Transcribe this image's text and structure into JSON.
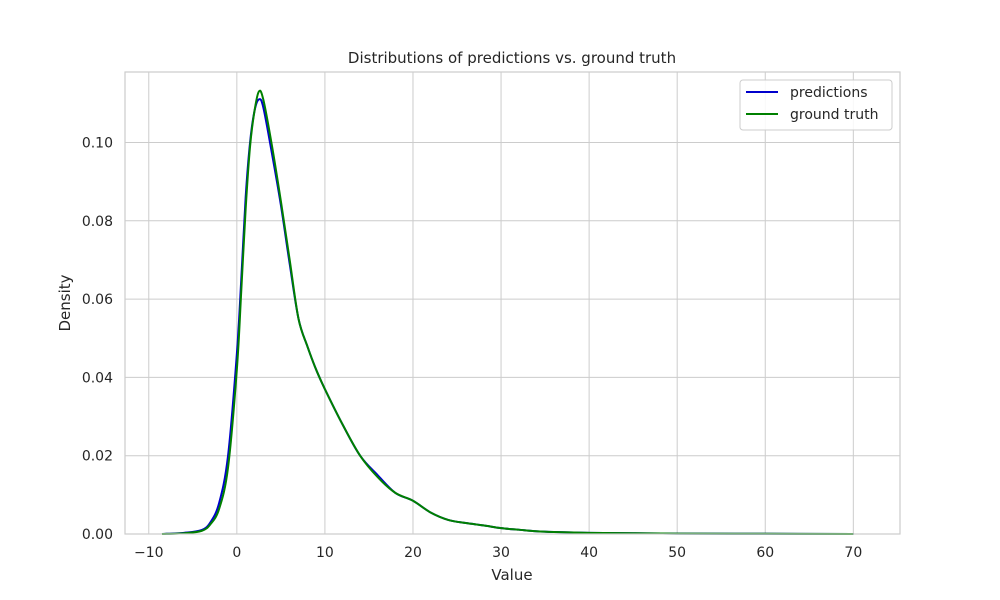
{
  "chart_data": {
    "type": "line",
    "title": "Distributions of predictions vs. ground truth",
    "xlabel": "Value",
    "ylabel": "Density",
    "xlim": [
      -12.7,
      75.3
    ],
    "ylim": [
      0,
      0.118
    ],
    "xticks": [
      -10,
      0,
      10,
      20,
      30,
      40,
      50,
      60,
      70
    ],
    "yticks": [
      0,
      0.02,
      0.04,
      0.06,
      0.08,
      0.1
    ],
    "ytick_labels": [
      "0.00",
      "0.02",
      "0.04",
      "0.06",
      "0.08",
      "0.10"
    ],
    "grid": true,
    "legend_position": "top-right",
    "series": [
      {
        "name": "predictions",
        "color": "#0000cc",
        "x": [
          -8.5,
          -6,
          -4,
          -3,
          -2,
          -1,
          0,
          0.5,
          1,
          1.5,
          2,
          2.5,
          3,
          4,
          5,
          6,
          7,
          8,
          9,
          10,
          12,
          14,
          16,
          18,
          20,
          22,
          24,
          26,
          28,
          30,
          32,
          34,
          36,
          40,
          45,
          50,
          60,
          70
        ],
        "y": [
          0.0,
          0.0003,
          0.001,
          0.003,
          0.008,
          0.02,
          0.046,
          0.065,
          0.086,
          0.1,
          0.108,
          0.111,
          0.109,
          0.097,
          0.084,
          0.069,
          0.055,
          0.048,
          0.042,
          0.037,
          0.028,
          0.02,
          0.015,
          0.0105,
          0.0085,
          0.0055,
          0.0036,
          0.0028,
          0.0022,
          0.0015,
          0.0011,
          0.0007,
          0.0005,
          0.0003,
          0.0002,
          0.0001,
          5e-05,
          0.0
        ]
      },
      {
        "name": "ground truth",
        "color": "#008000",
        "x": [
          -8.5,
          -6,
          -4,
          -3,
          -2,
          -1,
          0,
          0.5,
          1,
          1.5,
          2,
          2.5,
          3,
          4,
          5,
          6,
          7,
          8,
          9,
          10,
          12,
          14,
          16,
          18,
          20,
          22,
          24,
          26,
          28,
          30,
          32,
          34,
          36,
          40,
          45,
          50,
          60,
          70
        ],
        "y": [
          0.0,
          0.0002,
          0.0008,
          0.0025,
          0.0065,
          0.017,
          0.042,
          0.062,
          0.083,
          0.099,
          0.108,
          0.113,
          0.111,
          0.099,
          0.085,
          0.07,
          0.055,
          0.048,
          0.042,
          0.037,
          0.028,
          0.02,
          0.0145,
          0.0105,
          0.0085,
          0.0055,
          0.0036,
          0.0028,
          0.0022,
          0.0015,
          0.0011,
          0.0007,
          0.0005,
          0.0003,
          0.0002,
          0.0001,
          5e-05,
          0.0
        ]
      }
    ]
  }
}
